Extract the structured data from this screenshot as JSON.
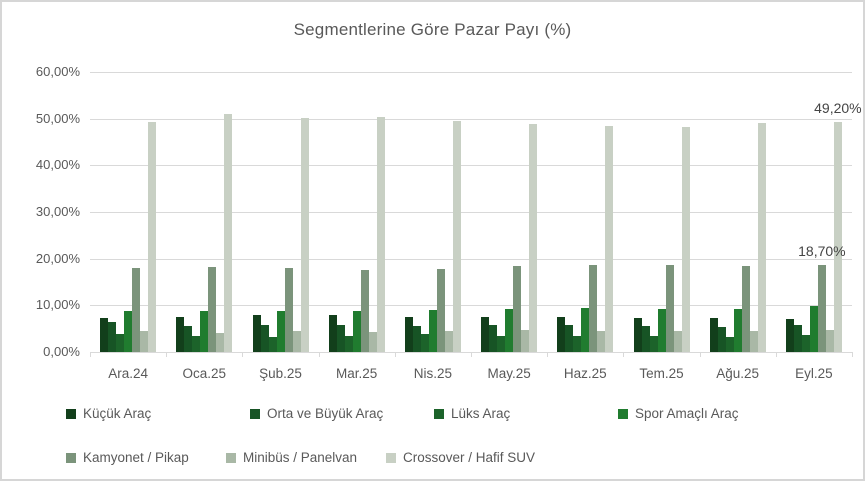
{
  "title": "Segmentlerine Göre Pazar Payı (%)",
  "chart_data": {
    "type": "bar",
    "title": "Segmentlerine Göre Pazar Payı (%)",
    "categories": [
      "Ara.24",
      "Oca.25",
      "Şub.25",
      "Mar.25",
      "Nis.25",
      "May.25",
      "Haz.25",
      "Tem.25",
      "Ağu.25",
      "Eyl.25"
    ],
    "series": [
      {
        "name": "Küçük Araç",
        "color": "#123f1b",
        "values": [
          7.3,
          7.5,
          8.0,
          7.9,
          7.4,
          7.5,
          7.5,
          7.3,
          7.3,
          7.0
        ]
      },
      {
        "name": "Orta ve Büyük Araç",
        "color": "#175425",
        "values": [
          6.4,
          5.5,
          5.7,
          5.7,
          5.5,
          5.7,
          5.7,
          5.5,
          5.4,
          5.7
        ]
      },
      {
        "name": "Lüks Araç",
        "color": "#1c632a",
        "values": [
          3.9,
          3.4,
          3.2,
          3.4,
          3.8,
          3.4,
          3.4,
          3.4,
          3.2,
          3.7
        ]
      },
      {
        "name": "Spor Amaçlı Araç",
        "color": "#207c2f",
        "values": [
          8.8,
          8.8,
          8.8,
          8.8,
          9.1,
          9.2,
          9.4,
          9.2,
          9.3,
          9.8
        ]
      },
      {
        "name": "Kamyonet / Pikap",
        "color": "#7b947b",
        "values": [
          17.9,
          18.2,
          17.9,
          17.6,
          17.8,
          18.4,
          18.6,
          18.6,
          18.5,
          18.7
        ]
      },
      {
        "name": "Minibüs / Panelvan",
        "color": "#a9b8a6",
        "values": [
          4.4,
          4.1,
          4.4,
          4.3,
          4.4,
          4.7,
          4.6,
          4.4,
          4.6,
          4.8
        ]
      },
      {
        "name": "Crossover / Hafif SUV",
        "color": "#c8d0c4",
        "values": [
          49.3,
          51.0,
          50.1,
          50.3,
          49.5,
          48.8,
          48.5,
          48.3,
          49.0,
          49.2
        ]
      }
    ],
    "y_ticks": [
      "60,00%",
      "50,00%",
      "40,00%",
      "30,00%",
      "20,00%",
      "10,00%",
      "0,00%"
    ],
    "ylim": [
      0,
      60
    ],
    "grid": true,
    "legend_position": "bottom",
    "legend_rows": [
      4,
      3
    ],
    "data_labels": [
      {
        "series": 6,
        "category": 9,
        "text": "49,20%"
      },
      {
        "series": 4,
        "category": 9,
        "text": "18,70%"
      }
    ],
    "colors": {
      "gridline": "#d9d9d9",
      "axis_text": "#595959",
      "title_text": "#595959",
      "data_label_text": "#444444",
      "border": "#d6d6d6"
    }
  }
}
